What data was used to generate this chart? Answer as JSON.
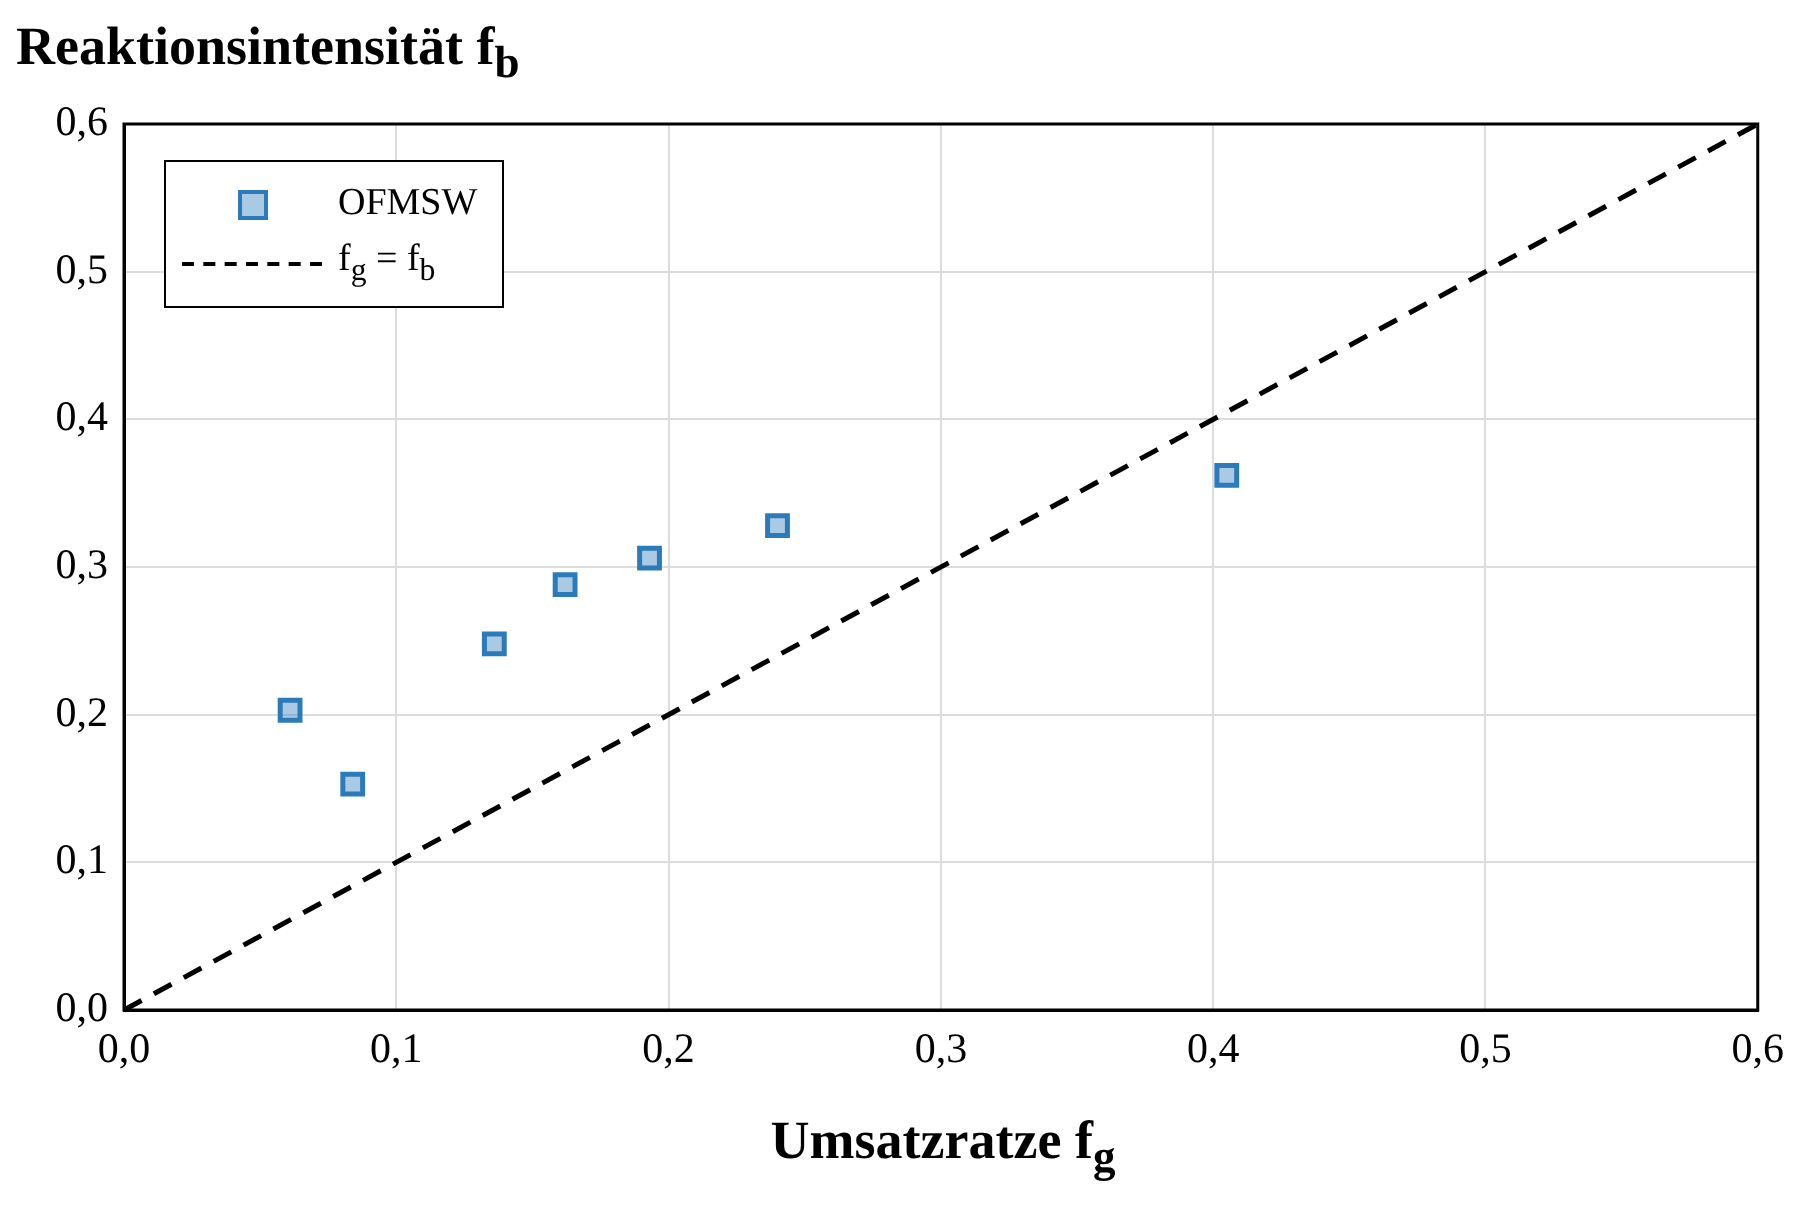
{
  "chart_data": {
    "type": "scatter",
    "xlabel": "Umsatzratze f$_{g}$",
    "ylabel": "Reaktionsintensität f$_{b}$",
    "xlim": [
      0,
      0.6
    ],
    "ylim": [
      0,
      0.6
    ],
    "xticks": [
      {
        "value": 0,
        "label": "0,0"
      },
      {
        "value": 0.1,
        "label": "0,1"
      },
      {
        "value": 0.2,
        "label": "0,2"
      },
      {
        "value": 0.3,
        "label": "0,3"
      },
      {
        "value": 0.4,
        "label": "0,4"
      },
      {
        "value": 0.5,
        "label": "0,5"
      },
      {
        "value": 0.6,
        "label": "0,6"
      }
    ],
    "yticks": [
      {
        "value": 0,
        "label": "0,0"
      },
      {
        "value": 0.1,
        "label": "0,1"
      },
      {
        "value": 0.2,
        "label": "0,2"
      },
      {
        "value": 0.3,
        "label": "0,3"
      },
      {
        "value": 0.4,
        "label": "0,4"
      },
      {
        "value": 0.5,
        "label": "0,5"
      },
      {
        "value": 0.6,
        "label": "0,6"
      }
    ],
    "grid": true,
    "legend": "top left",
    "series": [
      {
        "name": "OFMSW",
        "type": "scatter",
        "marker": "square",
        "color": "#2b7bba",
        "x": [
          0.061,
          0.084,
          0.136,
          0.162,
          0.193,
          0.24,
          0.405
        ],
        "values": [
          0.203,
          0.153,
          0.248,
          0.288,
          0.306,
          0.328,
          0.362
        ]
      },
      {
        "name": "f$_{g}$ = f$_{b}$",
        "type": "line",
        "marker": "none",
        "line_style": "dashed",
        "color": "#000000",
        "x": [
          0,
          0.6
        ],
        "values": [
          0,
          0.6
        ]
      }
    ]
  }
}
